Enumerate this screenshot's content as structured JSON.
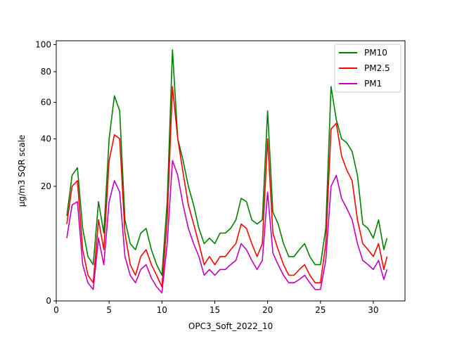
{
  "chart_data": {
    "type": "line",
    "xlabel": "OPC3_Soft_2022_10",
    "ylabel": "µg/m3 SQR scale",
    "y_scale": "sqrt",
    "xlim": [
      0,
      33
    ],
    "ylim": [
      0,
      103
    ],
    "x_ticks": [
      0,
      5,
      10,
      15,
      20,
      25,
      30
    ],
    "y_ticks": [
      0,
      20,
      40,
      60,
      80,
      100
    ],
    "grid": false,
    "legend_position": "top-right",
    "x": [
      1.0,
      1.5,
      2.0,
      2.5,
      3.0,
      3.5,
      4.0,
      4.5,
      5.0,
      5.5,
      6.0,
      6.5,
      7.0,
      7.5,
      8.0,
      8.5,
      9.0,
      9.5,
      10.0,
      10.5,
      11.0,
      11.5,
      12.0,
      12.5,
      13.0,
      13.5,
      14.0,
      14.5,
      15.0,
      15.5,
      16.0,
      16.5,
      17.0,
      17.5,
      18.0,
      18.5,
      19.0,
      19.5,
      20.0,
      20.5,
      21.0,
      21.5,
      22.0,
      22.5,
      23.0,
      23.5,
      24.0,
      24.5,
      25.0,
      25.5,
      26.0,
      26.5,
      27.0,
      27.5,
      28.0,
      28.5,
      29.0,
      29.5,
      30.0,
      30.5,
      31.0,
      31.3
    ],
    "series": [
      {
        "name": "PM10",
        "color": "#008000",
        "values": [
          11,
          24,
          27,
          8,
          3,
          2,
          15,
          7,
          40,
          64,
          55,
          10,
          5,
          4,
          7,
          8,
          4,
          2,
          1,
          15,
          96,
          40,
          30,
          20,
          14,
          8,
          5,
          6,
          5,
          7,
          7,
          8,
          10,
          16,
          15,
          10,
          9,
          10,
          55,
          12,
          9,
          5,
          3,
          3,
          4,
          5,
          3,
          2,
          2,
          8,
          70,
          50,
          40,
          38,
          34,
          24,
          9,
          8,
          6,
          10,
          4,
          6
        ]
      },
      {
        "name": "PM2.5",
        "color": "#ff0000",
        "values": [
          9,
          20,
          22,
          4,
          1,
          0.5,
          10,
          4,
          30,
          42,
          40,
          7,
          2,
          1,
          3,
          4,
          2,
          1,
          0.3,
          10,
          70,
          40,
          25,
          14,
          9,
          5,
          2,
          3,
          2,
          3,
          3,
          4,
          5,
          9,
          8,
          5,
          3,
          5,
          40,
          7,
          4,
          2,
          1,
          1,
          1.5,
          2,
          1,
          0.5,
          0.5,
          5,
          45,
          48,
          32,
          26,
          22,
          10,
          5,
          4,
          3,
          5,
          1.5,
          3
        ]
      },
      {
        "name": "PM1",
        "color": "#bf00bf",
        "values": [
          6,
          14,
          15,
          2,
          0.5,
          0.2,
          6,
          2,
          15,
          22,
          18,
          3,
          1,
          0.5,
          1.5,
          2,
          0.8,
          0.3,
          0.1,
          5,
          30,
          24,
          14,
          8,
          5,
          3,
          1,
          1.5,
          1,
          1.5,
          1.5,
          2,
          2.5,
          5,
          4,
          2.5,
          1.5,
          2.5,
          18,
          3.5,
          2,
          1,
          0.5,
          0.5,
          0.7,
          1,
          0.5,
          0.2,
          0.2,
          2.5,
          20,
          24,
          16,
          13,
          10,
          5,
          2.5,
          2,
          1.5,
          2.5,
          0.7,
          1.5
        ]
      }
    ]
  }
}
